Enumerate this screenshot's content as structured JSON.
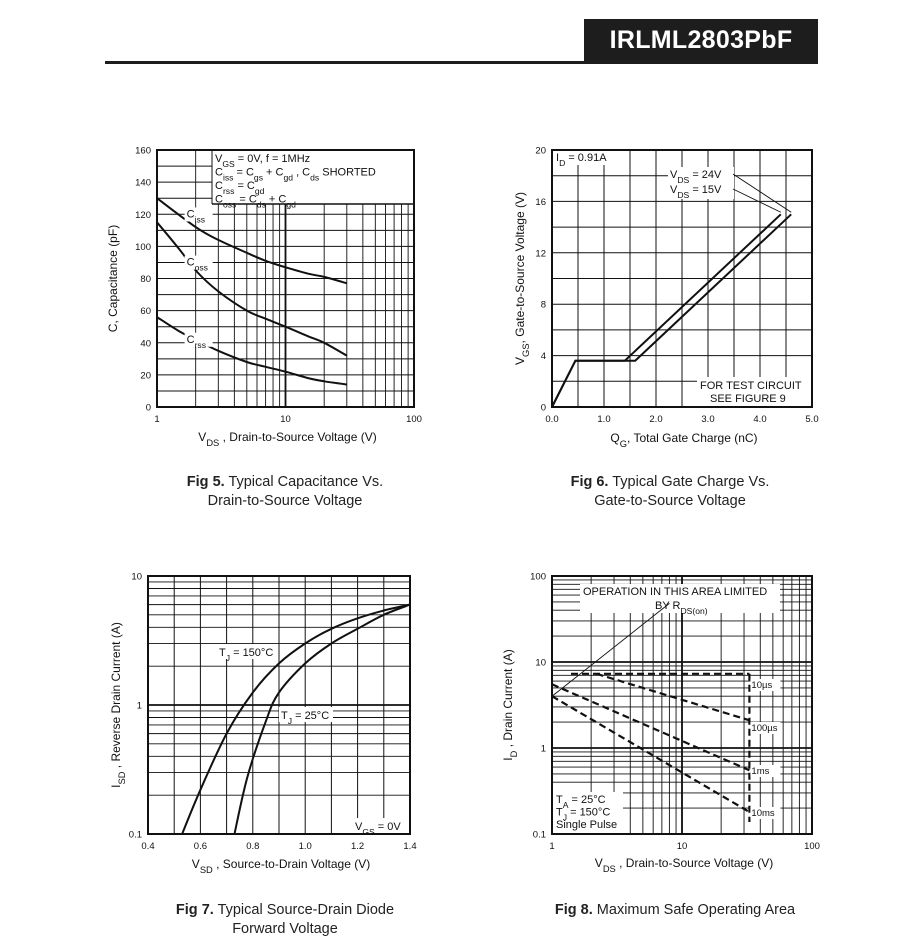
{
  "header": {
    "part_number": "IRLML2803PbF"
  },
  "chart_data": [
    {
      "id": "fig5",
      "type": "line",
      "x_scale": "log",
      "xlim": [
        1,
        100
      ],
      "ylim": [
        0,
        160
      ],
      "x_ticks": [
        "1",
        "10",
        "100"
      ],
      "y_ticks": [
        "0",
        "20",
        "40",
        "60",
        "80",
        "100",
        "120",
        "140",
        "160"
      ],
      "xlabel_main": "V",
      "xlabel_sub": "DS",
      "xlabel_rest": " , Drain-to-Source Voltage (V)",
      "ylabel": "C, Capacitance (pF)",
      "annotation_lines": [
        {
          "a": "V",
          "a_sub": "GS",
          "b": " = 0V,          f = 1MHz"
        },
        {
          "a": "C",
          "a_sub": "iss",
          "b": "  = C",
          "b_sub": "gs",
          "c": "  + C",
          "c_sub": "gd",
          "d": " ,  C",
          "d_sub": "ds",
          "e": "  SHORTED"
        },
        {
          "a": "C",
          "a_sub": "rss",
          "b": "  = C",
          "b_sub": "gd"
        },
        {
          "a": "C",
          "a_sub": "oss",
          "b": "  = C",
          "b_sub": "ds",
          "c": "  + C",
          "c_sub": "gd"
        }
      ],
      "series": [
        {
          "name": "Ciss",
          "label_main": "C",
          "label_sub": "iss",
          "label_at": [
            1.7,
            118
          ],
          "x": [
            1,
            2,
            3,
            5,
            7,
            10,
            15,
            20,
            30
          ],
          "values": [
            130,
            112,
            104,
            96,
            91,
            87,
            83,
            81,
            77
          ]
        },
        {
          "name": "Coss",
          "label_main": "C",
          "label_sub": "oss",
          "label_at": [
            1.7,
            88
          ],
          "x": [
            1,
            1.5,
            2,
            3,
            5,
            7,
            10,
            15,
            20,
            30
          ],
          "values": [
            115,
            98,
            85,
            72,
            60,
            55,
            50,
            44,
            40,
            32
          ]
        },
        {
          "name": "Crss",
          "label_main": "C",
          "label_sub": "rss",
          "label_at": [
            1.7,
            40
          ],
          "x": [
            1,
            1.5,
            2,
            3,
            5,
            7,
            10,
            15,
            20,
            30
          ],
          "values": [
            56,
            47,
            42,
            35,
            28,
            25,
            22,
            18,
            16,
            14
          ]
        }
      ],
      "caption_bold": "Fig 5.",
      "caption_rest": " Typical Capacitance Vs.",
      "caption_line2": "Drain-to-Source Voltage"
    },
    {
      "id": "fig6",
      "type": "line",
      "x_scale": "linear",
      "xlim": [
        0,
        5
      ],
      "ylim": [
        0,
        20
      ],
      "x_ticks": [
        "0.0",
        "1.0",
        "2.0",
        "3.0",
        "4.0",
        "5.0"
      ],
      "y_ticks": [
        "0",
        "4",
        "8",
        "12",
        "16",
        "20"
      ],
      "xlabel_main": "Q",
      "xlabel_sub": "G",
      "xlabel_rest": ", Total Gate Charge (nC)",
      "ylabel_main": "V",
      "ylabel_sub": "GS",
      "ylabel_rest": ", Gate-to-Source Voltage (V)",
      "id_label": "I",
      "id_sub": "D",
      "id_rest": " = 0.91A",
      "test_circuit_1": "FOR TEST CIRCUIT",
      "test_circuit_2": "SEE FIGURE 9",
      "series": [
        {
          "name": "VDS = 24V",
          "label_main": "V",
          "label_sub": "DS",
          "label_rest": " = 24V",
          "x": [
            0,
            0.45,
            1.6,
            4.6
          ],
          "values": [
            0,
            3.6,
            3.6,
            15
          ]
        },
        {
          "name": "VDS = 15V",
          "label_main": "V",
          "label_sub": "DS",
          "label_rest": " = 15V",
          "x": [
            0,
            0.45,
            1.4,
            4.4
          ],
          "values": [
            0,
            3.6,
            3.6,
            15
          ]
        }
      ],
      "caption_bold": "Fig 6.",
      "caption_rest": " Typical Gate Charge Vs.",
      "caption_line2": "Gate-to-Source Voltage"
    },
    {
      "id": "fig7",
      "type": "line",
      "x_scale": "linear",
      "y_scale": "log",
      "xlim": [
        0.4,
        1.4
      ],
      "ylim": [
        0.1,
        10
      ],
      "x_ticks": [
        "0.4",
        "0.6",
        "0.8",
        "1.0",
        "1.2",
        "1.4"
      ],
      "y_ticks": [
        "0.1",
        "1",
        "10"
      ],
      "xlabel_main": "V",
      "xlabel_sub": "SD",
      "xlabel_rest": " , Source-to-Drain Voltage (V)",
      "ylabel_main": "I",
      "ylabel_sub": "SD",
      "ylabel_rest": " , Reverse Drain Current (A)",
      "vgs_main": "V",
      "vgs_sub": "GS",
      "vgs_rest": " = 0V",
      "series": [
        {
          "name": "TJ = 150°C",
          "label_main": "T",
          "label_sub": "J",
          "label_rest": " = 150°C",
          "x": [
            0.53,
            0.6,
            0.7,
            0.8,
            0.9,
            1.0,
            1.1,
            1.2,
            1.3,
            1.4
          ],
          "values": [
            0.1,
            0.22,
            0.6,
            1.25,
            2.1,
            3.0,
            3.9,
            4.7,
            5.4,
            6.0
          ]
        },
        {
          "name": "TJ = 25°C",
          "label_main": "T",
          "label_sub": "J",
          "label_rest": " = 25°C",
          "x": [
            0.73,
            0.78,
            0.85,
            0.9,
            1.0,
            1.1,
            1.2,
            1.3,
            1.4
          ],
          "values": [
            0.1,
            0.28,
            0.75,
            1.25,
            2.1,
            3.0,
            3.9,
            5.0,
            6.0
          ]
        }
      ],
      "caption_bold": "Fig 7.",
      "caption_rest": " Typical Source-Drain Diode",
      "caption_line2": "Forward Voltage"
    },
    {
      "id": "fig8",
      "type": "line",
      "x_scale": "log",
      "y_scale": "log",
      "xlim": [
        1,
        100
      ],
      "ylim": [
        0.1,
        100
      ],
      "x_ticks": [
        "1",
        "10",
        "100"
      ],
      "y_ticks": [
        "0.1",
        "1",
        "10",
        "100"
      ],
      "xlabel_main": "V",
      "xlabel_sub": "DS",
      "xlabel_rest": " , Drain-to-Source Voltage (V)",
      "ylabel_main": "I",
      "ylabel_sub": "D",
      "ylabel_rest": " , Drain Current (A)",
      "operation_line1": "OPERATION IN THIS AREA LIMITED",
      "operation_line2": "BY R",
      "operation_sub": "DS(on)",
      "conditions": [
        {
          "main": "T",
          "sub": "A",
          "rest": "  = 25°C"
        },
        {
          "main": "T",
          "sub": "J",
          "rest": "  = 150°C"
        },
        {
          "main": "Single Pulse",
          "sub": "",
          "rest": ""
        }
      ],
      "series": [
        {
          "name": "10µs",
          "x": [
            1.4,
            33
          ],
          "values": [
            7.3,
            7.3
          ]
        },
        {
          "name": "100µs",
          "x": [
            2.2,
            33
          ],
          "values": [
            7.3,
            2.1
          ]
        },
        {
          "name": "1ms",
          "x": [
            1,
            33
          ],
          "values": [
            5.5,
            0.55
          ]
        },
        {
          "name": "10ms",
          "x": [
            1,
            33
          ],
          "values": [
            4.0,
            0.18
          ]
        }
      ],
      "rdson_line": {
        "x": [
          1,
          8
        ],
        "values": [
          4.0,
          48
        ]
      },
      "caption_bold": "Fig 8.",
      "caption_rest": " Maximum Safe Operating Area",
      "caption_line2": ""
    }
  ]
}
